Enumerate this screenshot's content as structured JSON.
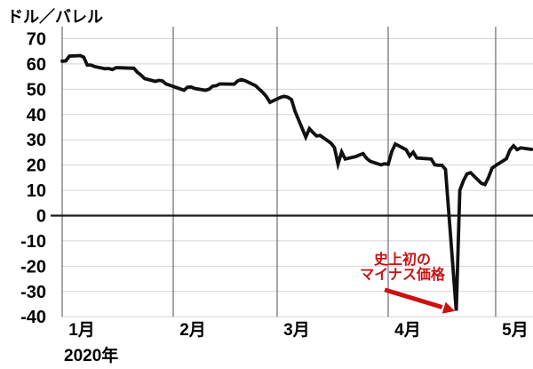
{
  "chart_data": {
    "type": "line",
    "unit_label": "ドル／バレル",
    "x_axis_sublabel": "2020年",
    "x_ticks": [
      {
        "label": "1月",
        "date": "2020-01-01"
      },
      {
        "label": "2月",
        "date": "2020-02-01"
      },
      {
        "label": "3月",
        "date": "2020-03-01"
      },
      {
        "label": "4月",
        "date": "2020-04-01"
      },
      {
        "label": "5月",
        "date": "2020-05-01"
      }
    ],
    "y_ticks": [
      70,
      60,
      50,
      40,
      30,
      20,
      10,
      0,
      -10,
      -20,
      -30,
      -40
    ],
    "ylim": [
      -40,
      75
    ],
    "grid": true,
    "legend": "none",
    "annotation": {
      "lines": [
        "史上初の",
        "マイナス価格"
      ],
      "color": "#cc1111",
      "points_to": {
        "date": "2020-04-20",
        "value": -37.6
      }
    },
    "colors": {
      "series_line": "#111111",
      "gridline_h": "#d4d4d4",
      "gridline_v": "#6a6a6a",
      "zero_line": "#1a1a1a",
      "annotation_red": "#cc1111",
      "text": "#000000",
      "background": "#ffffff"
    },
    "series": [
      {
        "points": [
          [
            "2020-01-01",
            61.1
          ],
          [
            "2020-01-02",
            61.2
          ],
          [
            "2020-01-03",
            63.1
          ],
          [
            "2020-01-06",
            63.3
          ],
          [
            "2020-01-07",
            62.7
          ],
          [
            "2020-01-08",
            59.6
          ],
          [
            "2020-01-09",
            59.6
          ],
          [
            "2020-01-10",
            59.0
          ],
          [
            "2020-01-13",
            58.1
          ],
          [
            "2020-01-14",
            58.2
          ],
          [
            "2020-01-15",
            57.8
          ],
          [
            "2020-01-16",
            58.5
          ],
          [
            "2020-01-17",
            58.5
          ],
          [
            "2020-01-21",
            58.3
          ],
          [
            "2020-01-22",
            56.7
          ],
          [
            "2020-01-23",
            55.6
          ],
          [
            "2020-01-24",
            54.2
          ],
          [
            "2020-01-27",
            53.1
          ],
          [
            "2020-01-28",
            53.5
          ],
          [
            "2020-01-29",
            53.3
          ],
          [
            "2020-01-30",
            52.1
          ],
          [
            "2020-01-31",
            51.6
          ],
          [
            "2020-02-03",
            50.1
          ],
          [
            "2020-02-04",
            49.6
          ],
          [
            "2020-02-05",
            50.8
          ],
          [
            "2020-02-06",
            50.9
          ],
          [
            "2020-02-07",
            50.3
          ],
          [
            "2020-02-10",
            49.6
          ],
          [
            "2020-02-11",
            50.0
          ],
          [
            "2020-02-12",
            51.2
          ],
          [
            "2020-02-13",
            51.4
          ],
          [
            "2020-02-14",
            52.1
          ],
          [
            "2020-02-18",
            52.0
          ],
          [
            "2020-02-19",
            53.3
          ],
          [
            "2020-02-20",
            53.8
          ],
          [
            "2020-02-21",
            53.4
          ],
          [
            "2020-02-24",
            51.4
          ],
          [
            "2020-02-25",
            50.0
          ],
          [
            "2020-02-26",
            48.7
          ],
          [
            "2020-02-27",
            47.1
          ],
          [
            "2020-02-28",
            44.8
          ],
          [
            "2020-03-02",
            46.8
          ],
          [
            "2020-03-03",
            47.2
          ],
          [
            "2020-03-04",
            46.8
          ],
          [
            "2020-03-05",
            45.9
          ],
          [
            "2020-03-06",
            41.3
          ],
          [
            "2020-03-09",
            31.1
          ],
          [
            "2020-03-10",
            34.4
          ],
          [
            "2020-03-11",
            32.9
          ],
          [
            "2020-03-12",
            31.5
          ],
          [
            "2020-03-13",
            31.7
          ],
          [
            "2020-03-16",
            28.7
          ],
          [
            "2020-03-17",
            26.9
          ],
          [
            "2020-03-18",
            20.4
          ],
          [
            "2020-03-19",
            25.2
          ],
          [
            "2020-03-20",
            22.4
          ],
          [
            "2020-03-23",
            23.4
          ],
          [
            "2020-03-24",
            24.0
          ],
          [
            "2020-03-25",
            24.5
          ],
          [
            "2020-03-26",
            22.6
          ],
          [
            "2020-03-27",
            21.5
          ],
          [
            "2020-03-30",
            20.1
          ],
          [
            "2020-03-31",
            20.5
          ],
          [
            "2020-04-01",
            20.3
          ],
          [
            "2020-04-02",
            25.3
          ],
          [
            "2020-04-03",
            28.3
          ],
          [
            "2020-04-06",
            26.1
          ],
          [
            "2020-04-07",
            23.6
          ],
          [
            "2020-04-08",
            25.1
          ],
          [
            "2020-04-09",
            22.8
          ],
          [
            "2020-04-13",
            22.4
          ],
          [
            "2020-04-14",
            20.1
          ],
          [
            "2020-04-15",
            19.9
          ],
          [
            "2020-04-16",
            19.9
          ],
          [
            "2020-04-17",
            18.3
          ],
          [
            "2020-04-20",
            -37.6
          ],
          [
            "2020-04-21",
            10.0
          ],
          [
            "2020-04-22",
            13.8
          ],
          [
            "2020-04-23",
            16.5
          ],
          [
            "2020-04-24",
            17.0
          ],
          [
            "2020-04-27",
            12.8
          ],
          [
            "2020-04-28",
            12.3
          ],
          [
            "2020-04-29",
            15.1
          ],
          [
            "2020-04-30",
            18.8
          ],
          [
            "2020-05-01",
            19.8
          ],
          [
            "2020-05-04",
            22.5
          ],
          [
            "2020-05-05",
            26.0
          ],
          [
            "2020-05-06",
            27.6
          ],
          [
            "2020-05-07",
            26.1
          ],
          [
            "2020-05-08",
            26.8
          ],
          [
            "2020-05-11",
            26.2
          ]
        ]
      }
    ]
  }
}
